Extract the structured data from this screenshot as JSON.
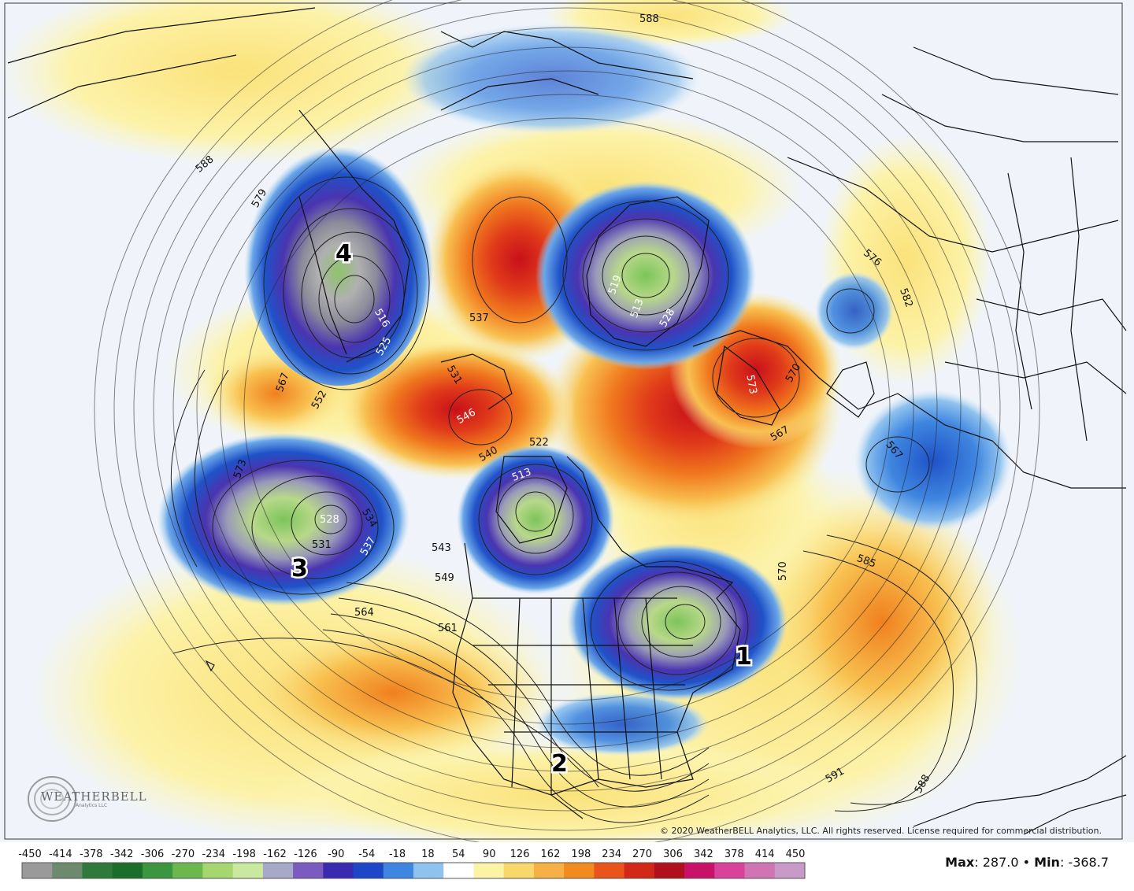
{
  "map": {
    "anomaly_centers": [
      {
        "label": "1",
        "kind": "negative"
      },
      {
        "label": "2",
        "kind": "negative"
      },
      {
        "label": "3",
        "kind": "negative"
      },
      {
        "label": "4",
        "kind": "negative"
      }
    ],
    "contour_labels": [
      "588",
      "588",
      "579",
      "573",
      "567",
      "552",
      "537",
      "531",
      "546",
      "540",
      "522",
      "513",
      "519",
      "513",
      "528",
      "531",
      "528",
      "534",
      "537",
      "543",
      "549",
      "564",
      "561",
      "573",
      "570",
      "567",
      "567",
      "576",
      "582",
      "585",
      "570",
      "591",
      "588",
      "516",
      "525"
    ],
    "colors": {
      "strong_negative": "#1b6d2a",
      "negative": "#2255c8",
      "light_negative": "#8fc2ee",
      "neutral": "#f0f4fa",
      "light_positive": "#fbf3a6",
      "positive": "#f28a22",
      "strong_positive": "#c8121e"
    }
  },
  "copyright": "© 2020 WeatherBELL Analytics, LLC. All rights reserved. License required for commercial distribution.",
  "logo": {
    "name": "WEATHERBELL",
    "sub": "Analytics LLC",
    "icon": "swirl-logo-icon"
  },
  "colorbar": {
    "ticks": [
      "-450",
      "-414",
      "-378",
      "-342",
      "-306",
      "-270",
      "-234",
      "-198",
      "-162",
      "-126",
      "-90",
      "-54",
      "-18",
      "18",
      "54",
      "90",
      "126",
      "162",
      "198",
      "234",
      "270",
      "306",
      "342",
      "378",
      "414",
      "450"
    ],
    "colors": [
      "#9a9a9a",
      "#6e8a6e",
      "#2f7a3a",
      "#1b6d2a",
      "#3c9640",
      "#6cb84e",
      "#a6d670",
      "#c9e8a0",
      "#a8a8c8",
      "#7a5cc0",
      "#3a2ab0",
      "#1e46c8",
      "#3f86e0",
      "#8fc2ee",
      "#ffffff",
      "#fbf3a6",
      "#f8d86a",
      "#f6b046",
      "#f28a22",
      "#e8541a",
      "#d2281a",
      "#b0101c",
      "#c8126a",
      "#d8429a",
      "#d074b4",
      "#c89ac8"
    ]
  },
  "stats": {
    "max_label": "Max",
    "max_value": "287.0",
    "separator": "•",
    "min_label": "Min",
    "min_value": "-368.7"
  }
}
